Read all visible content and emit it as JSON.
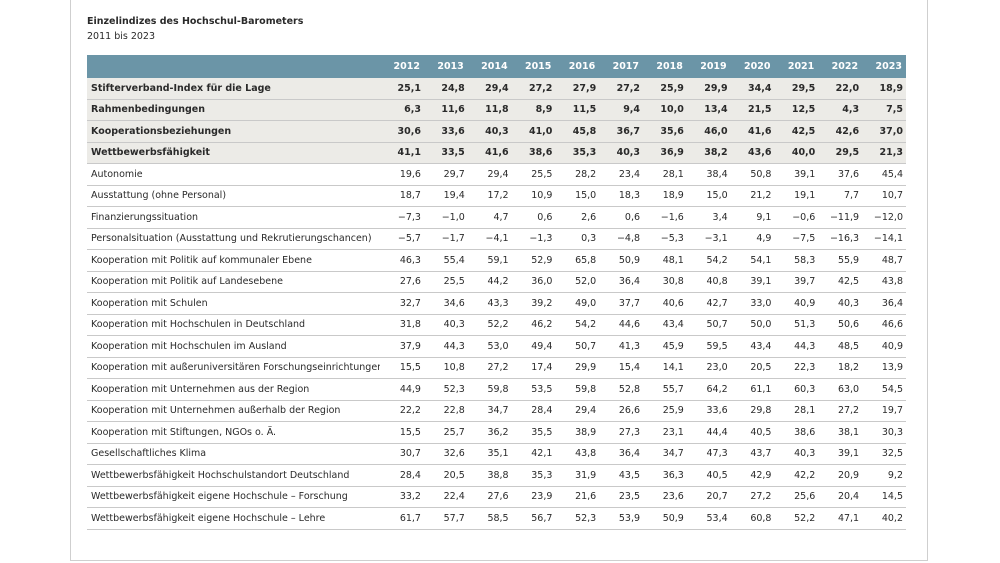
{
  "header": {
    "title": "Einzelindizes des Hochschul-Barometers",
    "subtitle": "2011 bis 2023"
  },
  "chart_data": {
    "type": "table",
    "title": "Einzelindizes des Hochschul-Barometers",
    "subtitle": "2011 bis 2023",
    "columns": [
      "2012",
      "2013",
      "2014",
      "2015",
      "2016",
      "2017",
      "2018",
      "2019",
      "2020",
      "2021",
      "2022",
      "2023"
    ],
    "rows": [
      {
        "label": "Stifterverband-Index für die Lage",
        "bold": true,
        "values": [
          "25,1",
          "24,8",
          "29,4",
          "27,2",
          "27,9",
          "27,2",
          "25,9",
          "29,9",
          "34,4",
          "29,5",
          "22,0",
          "18,9"
        ]
      },
      {
        "label": "Rahmenbedingungen",
        "bold": true,
        "values": [
          "6,3",
          "11,6",
          "11,8",
          "8,9",
          "11,5",
          "9,4",
          "10,0",
          "13,4",
          "21,5",
          "12,5",
          "4,3",
          "7,5"
        ]
      },
      {
        "label": "Kooperationsbeziehungen",
        "bold": true,
        "values": [
          "30,6",
          "33,6",
          "40,3",
          "41,0",
          "45,8",
          "36,7",
          "35,6",
          "46,0",
          "41,6",
          "42,5",
          "42,6",
          "37,0"
        ]
      },
      {
        "label": "Wettbewerbsfähigkeit",
        "bold": true,
        "values": [
          "41,1",
          "33,5",
          "41,6",
          "38,6",
          "35,3",
          "40,3",
          "36,9",
          "38,2",
          "43,6",
          "40,0",
          "29,5",
          "21,3"
        ]
      },
      {
        "label": "Autonomie",
        "bold": false,
        "values": [
          "19,6",
          "29,7",
          "29,4",
          "25,5",
          "28,2",
          "23,4",
          "28,1",
          "38,4",
          "50,8",
          "39,1",
          "37,6",
          "45,4"
        ]
      },
      {
        "label": "Ausstattung (ohne Personal)",
        "bold": false,
        "values": [
          "18,7",
          "19,4",
          "17,2",
          "10,9",
          "15,0",
          "18,3",
          "18,9",
          "15,0",
          "21,2",
          "19,1",
          "7,7",
          "10,7"
        ]
      },
      {
        "label": "Finanzierungssituation",
        "bold": false,
        "values": [
          "−7,3",
          "−1,0",
          "4,7",
          "0,6",
          "2,6",
          "0,6",
          "−1,6",
          "3,4",
          "9,1",
          "−0,6",
          "−11,9",
          "−12,0"
        ]
      },
      {
        "label": "Personalsituation (Ausstattung und Rekrutierungschancen)",
        "bold": false,
        "values": [
          "−5,7",
          "−1,7",
          "−4,1",
          "−1,3",
          "0,3",
          "−4,8",
          "−5,3",
          "−3,1",
          "4,9",
          "−7,5",
          "−16,3",
          "−14,1"
        ]
      },
      {
        "label": "Kooperation mit Politik auf kommunaler Ebene",
        "bold": false,
        "values": [
          "46,3",
          "55,4",
          "59,1",
          "52,9",
          "65,8",
          "50,9",
          "48,1",
          "54,2",
          "54,1",
          "58,3",
          "55,9",
          "48,7"
        ]
      },
      {
        "label": "Kooperation mit Politik auf Landesebene",
        "bold": false,
        "values": [
          "27,6",
          "25,5",
          "44,2",
          "36,0",
          "52,0",
          "36,4",
          "30,8",
          "40,8",
          "39,1",
          "39,7",
          "42,5",
          "43,8"
        ]
      },
      {
        "label": "Kooperation mit Schulen",
        "bold": false,
        "values": [
          "32,7",
          "34,6",
          "43,3",
          "39,2",
          "49,0",
          "37,7",
          "40,6",
          "42,7",
          "33,0",
          "40,9",
          "40,3",
          "36,4"
        ]
      },
      {
        "label": "Kooperation mit Hochschulen in Deutschland",
        "bold": false,
        "values": [
          "31,8",
          "40,3",
          "52,2",
          "46,2",
          "54,2",
          "44,6",
          "43,4",
          "50,7",
          "50,0",
          "51,3",
          "50,6",
          "46,6"
        ]
      },
      {
        "label": "Kooperation mit Hochschulen im Ausland",
        "bold": false,
        "values": [
          "37,9",
          "44,3",
          "53,0",
          "49,4",
          "50,7",
          "41,3",
          "45,9",
          "59,5",
          "43,4",
          "44,3",
          "48,5",
          "40,9"
        ]
      },
      {
        "label": "Kooperation mit außeruniversitären Forschungseinrichtungen",
        "bold": false,
        "values": [
          "15,5",
          "10,8",
          "27,2",
          "17,4",
          "29,9",
          "15,4",
          "14,1",
          "23,0",
          "20,5",
          "22,3",
          "18,2",
          "13,9"
        ]
      },
      {
        "label": "Kooperation mit Unternehmen aus der Region",
        "bold": false,
        "values": [
          "44,9",
          "52,3",
          "59,8",
          "53,5",
          "59,8",
          "52,8",
          "55,7",
          "64,2",
          "61,1",
          "60,3",
          "63,0",
          "54,5"
        ]
      },
      {
        "label": "Kooperation mit Unternehmen außerhalb der Region",
        "bold": false,
        "values": [
          "22,2",
          "22,8",
          "34,7",
          "28,4",
          "29,4",
          "26,6",
          "25,9",
          "33,6",
          "29,8",
          "28,1",
          "27,2",
          "19,7"
        ]
      },
      {
        "label": "Kooperation mit Stiftungen, NGOs o. Ä.",
        "bold": false,
        "values": [
          "15,5",
          "25,7",
          "36,2",
          "35,5",
          "38,9",
          "27,3",
          "23,1",
          "44,4",
          "40,5",
          "38,6",
          "38,1",
          "30,3"
        ]
      },
      {
        "label": "Gesellschaftliches Klima",
        "bold": false,
        "values": [
          "30,7",
          "32,6",
          "35,1",
          "42,1",
          "43,8",
          "36,4",
          "34,7",
          "47,3",
          "43,7",
          "40,3",
          "39,1",
          "32,5"
        ]
      },
      {
        "label": "Wettbewerbsfähigkeit Hochschulstandort Deutschland",
        "bold": false,
        "values": [
          "28,4",
          "20,5",
          "38,8",
          "35,3",
          "31,9",
          "43,5",
          "36,3",
          "40,5",
          "42,9",
          "42,2",
          "20,9",
          "9,2"
        ]
      },
      {
        "label": "Wettbewerbsfähigkeit eigene Hochschule – Forschung",
        "bold": false,
        "values": [
          "33,2",
          "22,4",
          "27,6",
          "23,9",
          "21,6",
          "23,5",
          "23,6",
          "20,7",
          "27,2",
          "25,6",
          "20,4",
          "14,5"
        ]
      },
      {
        "label": "Wettbewerbsfähigkeit eigene Hochschule – Lehre",
        "bold": false,
        "values": [
          "61,7",
          "57,7",
          "58,5",
          "56,7",
          "52,3",
          "53,9",
          "50,9",
          "53,4",
          "60,8",
          "52,2",
          "47,1",
          "40,2"
        ]
      }
    ]
  },
  "colors": {
    "header_bg": "#6b95a7",
    "index_row_bg": "#ecebe7",
    "text": "#2a2a2a",
    "rule": "#c9c9c9"
  }
}
